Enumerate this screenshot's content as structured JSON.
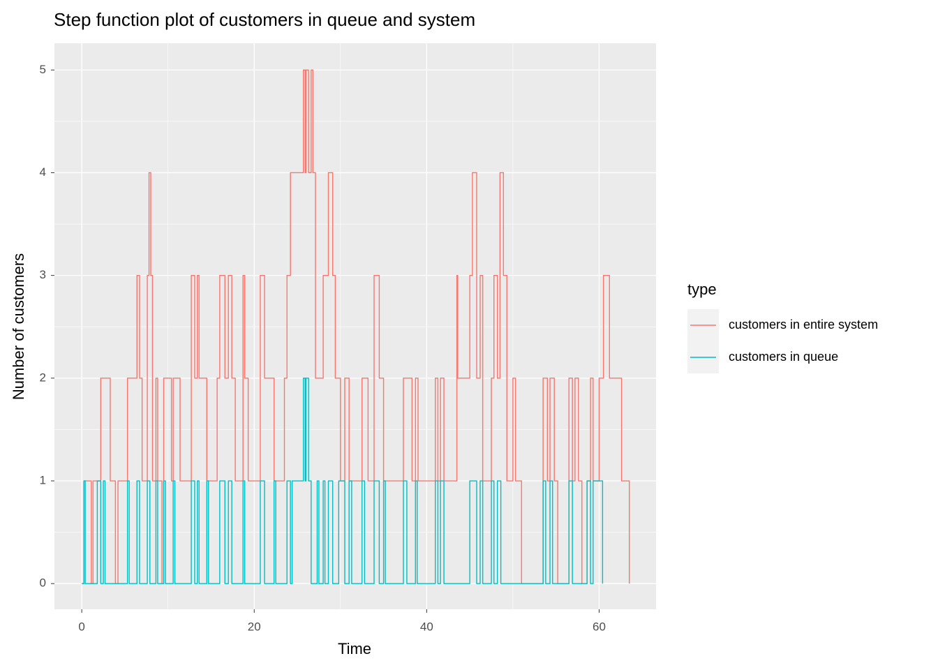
{
  "chart_data": {
    "type": "step",
    "title": "Step function plot of customers in queue and system",
    "x_label": "Time",
    "y_label": "Number of customers",
    "legend_title": "type",
    "xlim": [
      -3.17,
      66.6
    ],
    "ylim": [
      -0.25,
      5.26
    ],
    "xticks": [
      0,
      20,
      40,
      60
    ],
    "yticks": [
      0,
      1,
      2,
      3,
      4,
      5
    ],
    "grid": true,
    "legend": "right",
    "series": [
      {
        "name": "customers in entire system",
        "color": "#f8766d",
        "x": [
          0,
          0.25,
          1.1,
          1.3,
          2.2,
          3.3,
          3.9,
          4.2,
          5.3,
          6.4,
          6.7,
          7.0,
          7.6,
          7.8,
          8.0,
          8.2,
          8.6,
          8.8,
          9.3,
          9.5,
          10.4,
          10.6,
          11.4,
          12.7,
          13.1,
          13.4,
          13.6,
          14.5,
          15.7,
          16.0,
          16.6,
          17.0,
          17.4,
          17.8,
          18.7,
          18.9,
          19.3,
          20.7,
          21.2,
          22.3,
          23.5,
          23.8,
          24.2,
          25.7,
          25.9,
          26.0,
          26.3,
          26.6,
          26.8,
          27.1,
          28.0,
          28.6,
          29.1,
          29.4,
          30.0,
          30.5,
          31.0,
          32.5,
          33.2,
          33.9,
          34.5,
          35.0,
          37.3,
          38.3,
          38.7,
          39.0,
          41.0,
          41.3,
          41.6,
          42.0,
          43.5,
          43.6,
          45.0,
          45.3,
          45.8,
          46.2,
          46.5,
          47.5,
          47.8,
          48.2,
          48.5,
          48.9,
          49.3,
          50.0,
          50.3,
          51.0,
          53.5,
          54.0,
          54.3,
          54.8,
          55.2,
          56.5,
          56.9,
          57.2,
          57.6,
          58.0,
          58.6,
          59.0,
          59.3,
          60.0,
          60.5,
          61.2,
          62.6,
          63.5
        ],
        "values": [
          0,
          1,
          0,
          1,
          2,
          1,
          0,
          1,
          2,
          3,
          2,
          1,
          3,
          4,
          3,
          1,
          2,
          1,
          0,
          2,
          1,
          2,
          1,
          3,
          2,
          3,
          2,
          1,
          2,
          3,
          2,
          3,
          2,
          1,
          3,
          2,
          1,
          3,
          2,
          1,
          2,
          3,
          4,
          5,
          4,
          5,
          4,
          5,
          4,
          2,
          3,
          4,
          3,
          2,
          1,
          2,
          1,
          2,
          1,
          3,
          2,
          1,
          2,
          1,
          2,
          1,
          2,
          1,
          2,
          1,
          3,
          2,
          3,
          4,
          2,
          3,
          1,
          2,
          3,
          2,
          4,
          3,
          1,
          2,
          1,
          0,
          2,
          1,
          2,
          1,
          0,
          2,
          1,
          2,
          1,
          0,
          1,
          2,
          1,
          2,
          3,
          2,
          1,
          0
        ]
      },
      {
        "name": "customers in queue",
        "color": "#00bfc4",
        "x": [
          0,
          0.25,
          0.4,
          1.8,
          2.2,
          2.5,
          2.7,
          5.3,
          5.5,
          6.4,
          6.7,
          7.6,
          7.9,
          8.6,
          8.8,
          9.5,
          9.7,
          10.6,
          10.8,
          12.7,
          13.1,
          13.4,
          13.6,
          14.5,
          14.7,
          16.0,
          16.6,
          17.0,
          17.4,
          18.7,
          18.9,
          20.7,
          21.2,
          22.3,
          22.5,
          23.8,
          24.2,
          24.4,
          25.7,
          25.9,
          26.0,
          26.3,
          26.6,
          27.3,
          27.5,
          28.0,
          28.2,
          28.6,
          29.1,
          29.8,
          30.5,
          31.0,
          31.3,
          32.5,
          32.8,
          33.9,
          34.5,
          35.0,
          35.2,
          37.3,
          37.7,
          38.7,
          38.9,
          41.0,
          41.3,
          41.6,
          42.0,
          45.0,
          45.8,
          46.2,
          46.5,
          47.5,
          47.8,
          48.2,
          48.6,
          53.5,
          53.8,
          54.3,
          54.6,
          56.5,
          56.9,
          58.6,
          59.0,
          59.3,
          60.4
        ],
        "values": [
          0,
          1,
          0,
          1,
          0,
          1,
          0,
          1,
          0,
          1,
          0,
          1,
          0,
          1,
          0,
          1,
          0,
          1,
          0,
          1,
          0,
          1,
          0,
          1,
          0,
          1,
          0,
          1,
          0,
          1,
          0,
          1,
          0,
          1,
          0,
          1,
          0,
          1,
          2,
          1,
          2,
          1,
          0,
          1,
          0,
          1,
          0,
          1,
          0,
          1,
          0,
          1,
          0,
          1,
          0,
          1,
          0,
          1,
          0,
          1,
          0,
          1,
          0,
          1,
          0,
          1,
          0,
          1,
          0,
          1,
          0,
          1,
          0,
          1,
          0,
          1,
          0,
          1,
          0,
          1,
          0,
          1,
          0,
          1,
          0
        ]
      }
    ]
  }
}
